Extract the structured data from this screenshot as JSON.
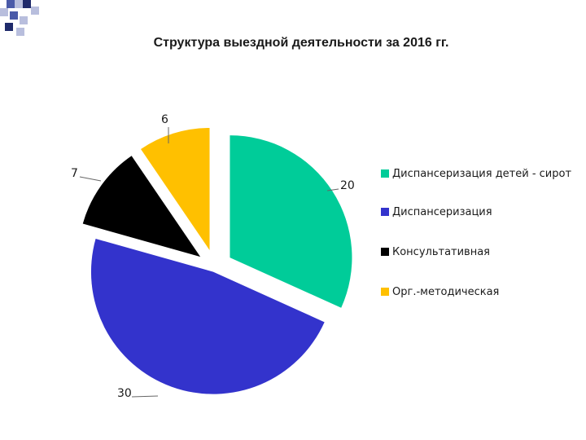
{
  "chart_data": {
    "type": "pie",
    "title": "Структура выездной деятельности  за 2016 гг.",
    "exploded": true,
    "legend_position": "right",
    "slices": [
      {
        "label": "Диспансеризация  детей - сирот",
        "value": 20,
        "color": "#00CC99"
      },
      {
        "label": "Диспансеризация",
        "value": 30,
        "color": "#3333CC"
      },
      {
        "label": "Консультативная",
        "value": 7,
        "color": "#000000"
      },
      {
        "label": "Орг.-методическая",
        "value": 6,
        "color": "#FFC000"
      }
    ]
  },
  "colors": {
    "deco_navy": "#1F2A6B",
    "deco_blue": "#4A5AA8",
    "deco_light": "#B8BEDD",
    "leader_line": "#666666"
  }
}
